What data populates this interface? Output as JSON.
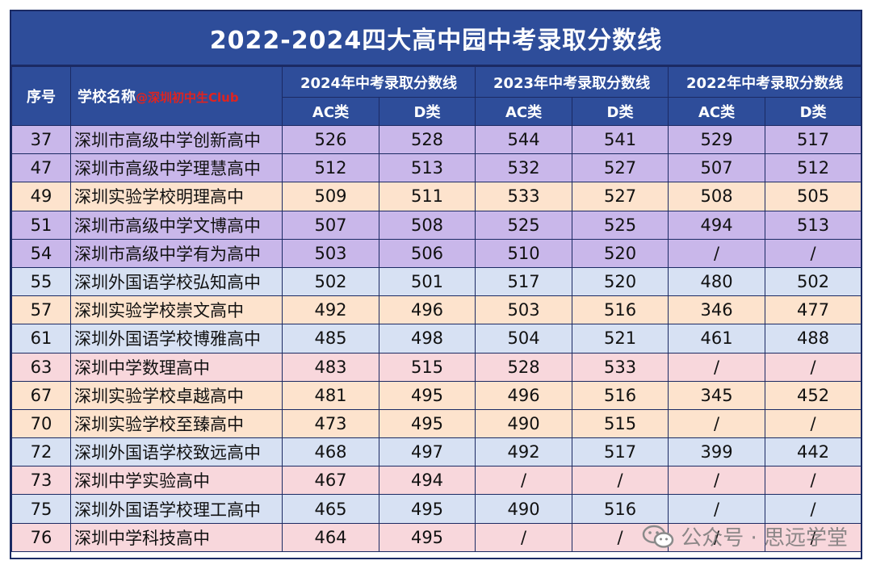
{
  "title": "2022-2024四大高中园中考录取分数线",
  "header": {
    "seq": "序号",
    "school": "学校名称",
    "school_tag": "@深圳初中生Club",
    "year_groups": [
      "2024年中考录取分数线",
      "2023年中考录取分数线",
      "2022年中考录取分数线"
    ],
    "ac": "AC类",
    "d": "D类"
  },
  "rows": [
    {
      "seq": "37",
      "name": "深圳市高级中学创新高中",
      "s2024ac": "526",
      "s2024d": "528",
      "s2023ac": "544",
      "s2023d": "541",
      "s2022ac": "529",
      "s2022d": "517",
      "band": "purple"
    },
    {
      "seq": "47",
      "name": "深圳市高级中学理慧高中",
      "s2024ac": "512",
      "s2024d": "513",
      "s2023ac": "532",
      "s2023d": "527",
      "s2022ac": "507",
      "s2022d": "512",
      "band": "purple"
    },
    {
      "seq": "49",
      "name": "深圳实验学校明理高中",
      "s2024ac": "509",
      "s2024d": "511",
      "s2023ac": "533",
      "s2023d": "527",
      "s2022ac": "508",
      "s2022d": "505",
      "band": "peach"
    },
    {
      "seq": "51",
      "name": "深圳市高级中学文博高中",
      "s2024ac": "507",
      "s2024d": "508",
      "s2023ac": "525",
      "s2023d": "525",
      "s2022ac": "494",
      "s2022d": "513",
      "band": "purple"
    },
    {
      "seq": "54",
      "name": "深圳市高级中学有为高中",
      "s2024ac": "503",
      "s2024d": "506",
      "s2023ac": "510",
      "s2023d": "520",
      "s2022ac": "/",
      "s2022d": "/",
      "band": "purple"
    },
    {
      "seq": "55",
      "name": "深圳外国语学校弘知高中",
      "s2024ac": "502",
      "s2024d": "501",
      "s2023ac": "517",
      "s2023d": "520",
      "s2022ac": "480",
      "s2022d": "502",
      "band": "blue"
    },
    {
      "seq": "57",
      "name": "深圳实验学校崇文高中",
      "s2024ac": "492",
      "s2024d": "496",
      "s2023ac": "503",
      "s2023d": "516",
      "s2022ac": "346",
      "s2022d": "477",
      "band": "peach"
    },
    {
      "seq": "61",
      "name": "深圳外国语学校博雅高中",
      "s2024ac": "485",
      "s2024d": "498",
      "s2023ac": "504",
      "s2023d": "521",
      "s2022ac": "461",
      "s2022d": "488",
      "band": "blue"
    },
    {
      "seq": "63",
      "name": "深圳中学数理高中",
      "s2024ac": "483",
      "s2024d": "515",
      "s2023ac": "528",
      "s2023d": "533",
      "s2022ac": "/",
      "s2022d": "/",
      "band": "pink"
    },
    {
      "seq": "67",
      "name": "深圳实验学校卓越高中",
      "s2024ac": "481",
      "s2024d": "495",
      "s2023ac": "496",
      "s2023d": "516",
      "s2022ac": "345",
      "s2022d": "452",
      "band": "peach"
    },
    {
      "seq": "70",
      "name": "深圳实验学校至臻高中",
      "s2024ac": "473",
      "s2024d": "495",
      "s2023ac": "490",
      "s2023d": "515",
      "s2022ac": "/",
      "s2022d": "/",
      "band": "peach"
    },
    {
      "seq": "72",
      "name": "深圳外国语学校致远高中",
      "s2024ac": "468",
      "s2024d": "497",
      "s2023ac": "492",
      "s2023d": "517",
      "s2022ac": "399",
      "s2022d": "442",
      "band": "blue"
    },
    {
      "seq": "73",
      "name": "深圳中学实验高中",
      "s2024ac": "467",
      "s2024d": "494",
      "s2023ac": "/",
      "s2023d": "/",
      "s2022ac": "/",
      "s2022d": "/",
      "band": "pink"
    },
    {
      "seq": "75",
      "name": "深圳外国语学校理工高中",
      "s2024ac": "465",
      "s2024d": "495",
      "s2023ac": "490",
      "s2023d": "516",
      "s2022ac": "/",
      "s2022d": "/",
      "band": "blue"
    },
    {
      "seq": "76",
      "name": "深圳中学科技高中",
      "s2024ac": "464",
      "s2024d": "495",
      "s2023ac": "/",
      "s2023d": "/",
      "s2022ac": "/",
      "s2022d": "/",
      "band": "pink"
    }
  ],
  "watermark": "公众号 · 思远学堂"
}
